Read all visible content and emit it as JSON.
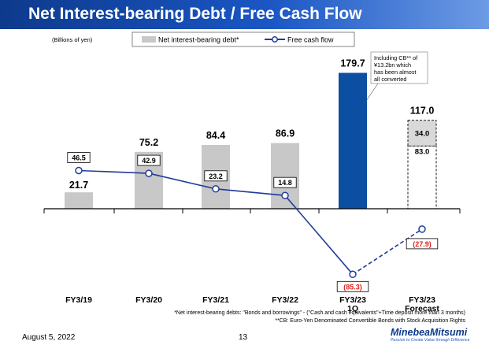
{
  "title": "Net Interest-bearing Debt / Free Cash Flow",
  "footer": {
    "date": "August 5, 2022",
    "page": "13",
    "logo_name": "MinebeaMitsumi",
    "logo_tagline": "Passion to Create Value through Difference"
  },
  "footnotes": {
    "debt_definition": "*Net interest-bearing debts: \"Bonds and borrowings\" - (\"Cash and cash equivalents\"+Time deposit more than 3 months)",
    "cb_definition": "**CB: Euro-Yen Denominated Convertible Bonds with Stock Acquisition Rights"
  },
  "annotation": {
    "lines": [
      "Including CB** of",
      "¥13.2bn which",
      "has been almost",
      "all converted"
    ]
  },
  "colors": {
    "bar_gray": "#c8c8c8",
    "bar_highlight": "#0b4ea2",
    "fcf_line": "#1f3c99",
    "negative_label": "#e0201b",
    "title_bar": "#0d3a8c"
  },
  "chart_data": {
    "type": "bar",
    "unit_label": "(Billions of yen)",
    "categories": [
      [
        "FY3/19"
      ],
      [
        "FY3/20"
      ],
      [
        "FY3/21"
      ],
      [
        "FY3/22"
      ],
      [
        "FY3/23",
        "1Q"
      ],
      [
        "FY3/23",
        "Forecast"
      ]
    ],
    "legend": {
      "position": "top-center",
      "debt_label": "Net interest-bearing debt*",
      "fcf_label": "Free cash flow"
    },
    "net_interest_bearing_debt": {
      "values": [
        21.7,
        75.2,
        84.4,
        86.9,
        179.7,
        117.0
      ],
      "labels": [
        "21.7",
        "75.2",
        "84.4",
        "86.9",
        "179.7",
        "117.0"
      ],
      "highlight_index": 4,
      "forecast_index": 5,
      "forecast_breakdown": {
        "values": [
          83.0,
          34.0
        ],
        "labels": [
          "83.0",
          "34.0"
        ]
      }
    },
    "free_cash_flow": {
      "values": [
        46.5,
        42.9,
        23.2,
        14.8,
        -85.3,
        -27.9
      ],
      "labels": [
        "46.5",
        "42.9",
        "23.2",
        "14.8",
        "(85.3)",
        "(27.9)"
      ],
      "dashed_from_index": 4
    }
  }
}
